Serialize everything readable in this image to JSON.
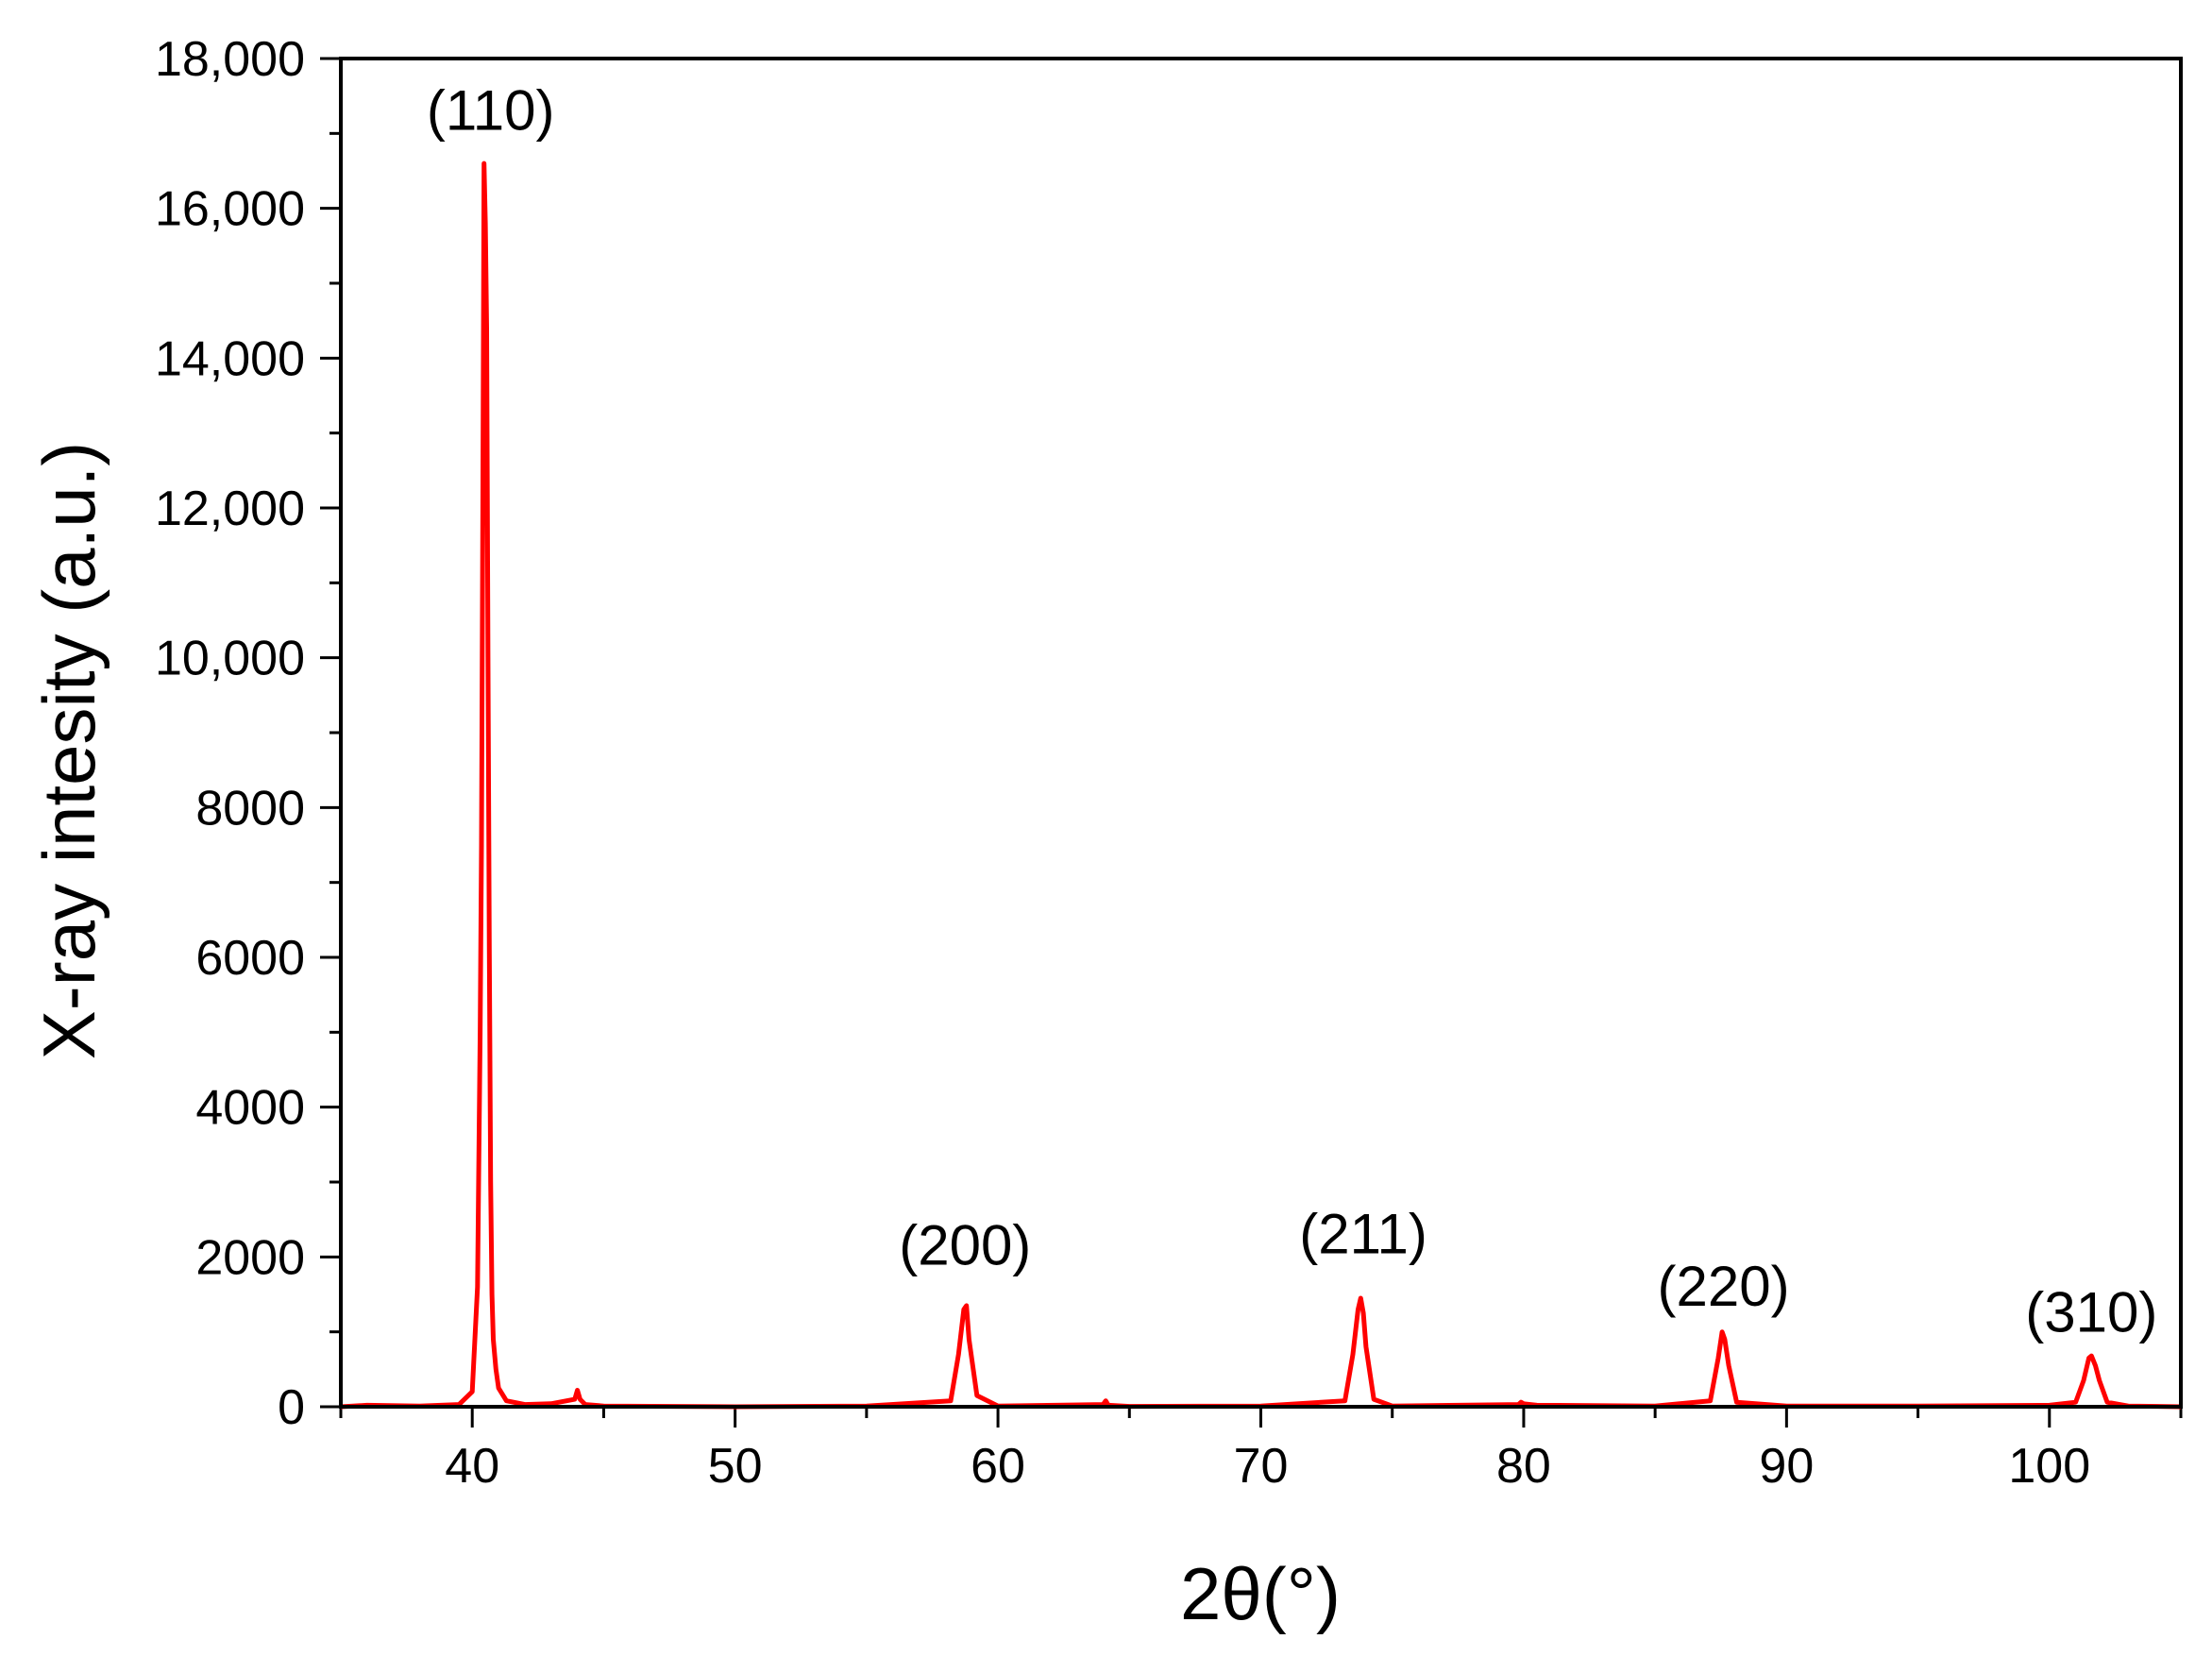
{
  "chart_data": {
    "type": "line",
    "title": "",
    "xlabel": "2θ(°)",
    "ylabel": "X-ray intesity (a.u.)",
    "xlim": [
      35,
      105
    ],
    "ylim": [
      0,
      18000
    ],
    "x_ticks": [
      40,
      50,
      60,
      70,
      80,
      90,
      100
    ],
    "x_tick_labels": [
      "40",
      "50",
      "60",
      "70",
      "80",
      "90",
      "100"
    ],
    "y_ticks": [
      0,
      2000,
      4000,
      6000,
      8000,
      10000,
      12000,
      14000,
      16000,
      18000
    ],
    "y_tick_labels": [
      "0",
      "2000",
      "4000",
      "6000",
      "8000",
      "10,000",
      "12,000",
      "14,000",
      "16,000",
      "18,000"
    ],
    "grid": false,
    "line_color": "#ff0000",
    "series": [
      {
        "x": [
          35,
          36,
          38,
          39.5,
          40.0,
          40.2,
          40.3,
          40.35,
          40.4,
          40.45,
          40.5,
          40.55,
          40.6,
          40.65,
          40.7,
          40.75,
          40.8,
          40.9,
          41.0,
          41.3,
          42,
          43,
          43.9,
          44.0,
          44.1,
          44.3,
          45,
          50,
          55,
          58.2,
          58.5,
          58.7,
          58.8,
          58.9,
          59.2,
          60,
          64,
          64.1,
          64.2,
          65,
          70,
          73.2,
          73.5,
          73.7,
          73.8,
          73.9,
          74.0,
          74.3,
          75,
          79.8,
          79.9,
          80,
          80.5,
          85,
          87.1,
          87.4,
          87.55,
          87.65,
          87.8,
          88.1,
          90,
          95,
          100,
          101.0,
          101.3,
          101.5,
          101.6,
          101.75,
          101.9,
          102.2,
          103,
          105
        ],
        "y": [
          0,
          20,
          10,
          30,
          200,
          1600,
          5000,
          7500,
          12000,
          16600,
          15800,
          14400,
          10000,
          6100,
          3000,
          1500,
          900,
          500,
          250,
          80,
          30,
          40,
          100,
          220,
          100,
          30,
          10,
          0,
          10,
          80,
          700,
          1300,
          1350,
          900,
          150,
          10,
          30,
          80,
          20,
          5,
          10,
          80,
          700,
          1300,
          1450,
          1250,
          800,
          100,
          10,
          30,
          60,
          40,
          20,
          10,
          80,
          650,
          1000,
          900,
          550,
          60,
          10,
          10,
          20,
          60,
          350,
          650,
          680,
          550,
          350,
          60,
          10,
          0
        ]
      }
    ],
    "annotations": [
      {
        "text": "(110)",
        "x": 40.7,
        "y": 17050
      },
      {
        "text": "(200)",
        "x": 58.75,
        "y": 1900
      },
      {
        "text": "(211)",
        "x": 73.9,
        "y": 2050
      },
      {
        "text": "(220)",
        "x": 87.6,
        "y": 1350
      },
      {
        "text": "(310)",
        "x": 101.6,
        "y": 1000
      }
    ]
  }
}
